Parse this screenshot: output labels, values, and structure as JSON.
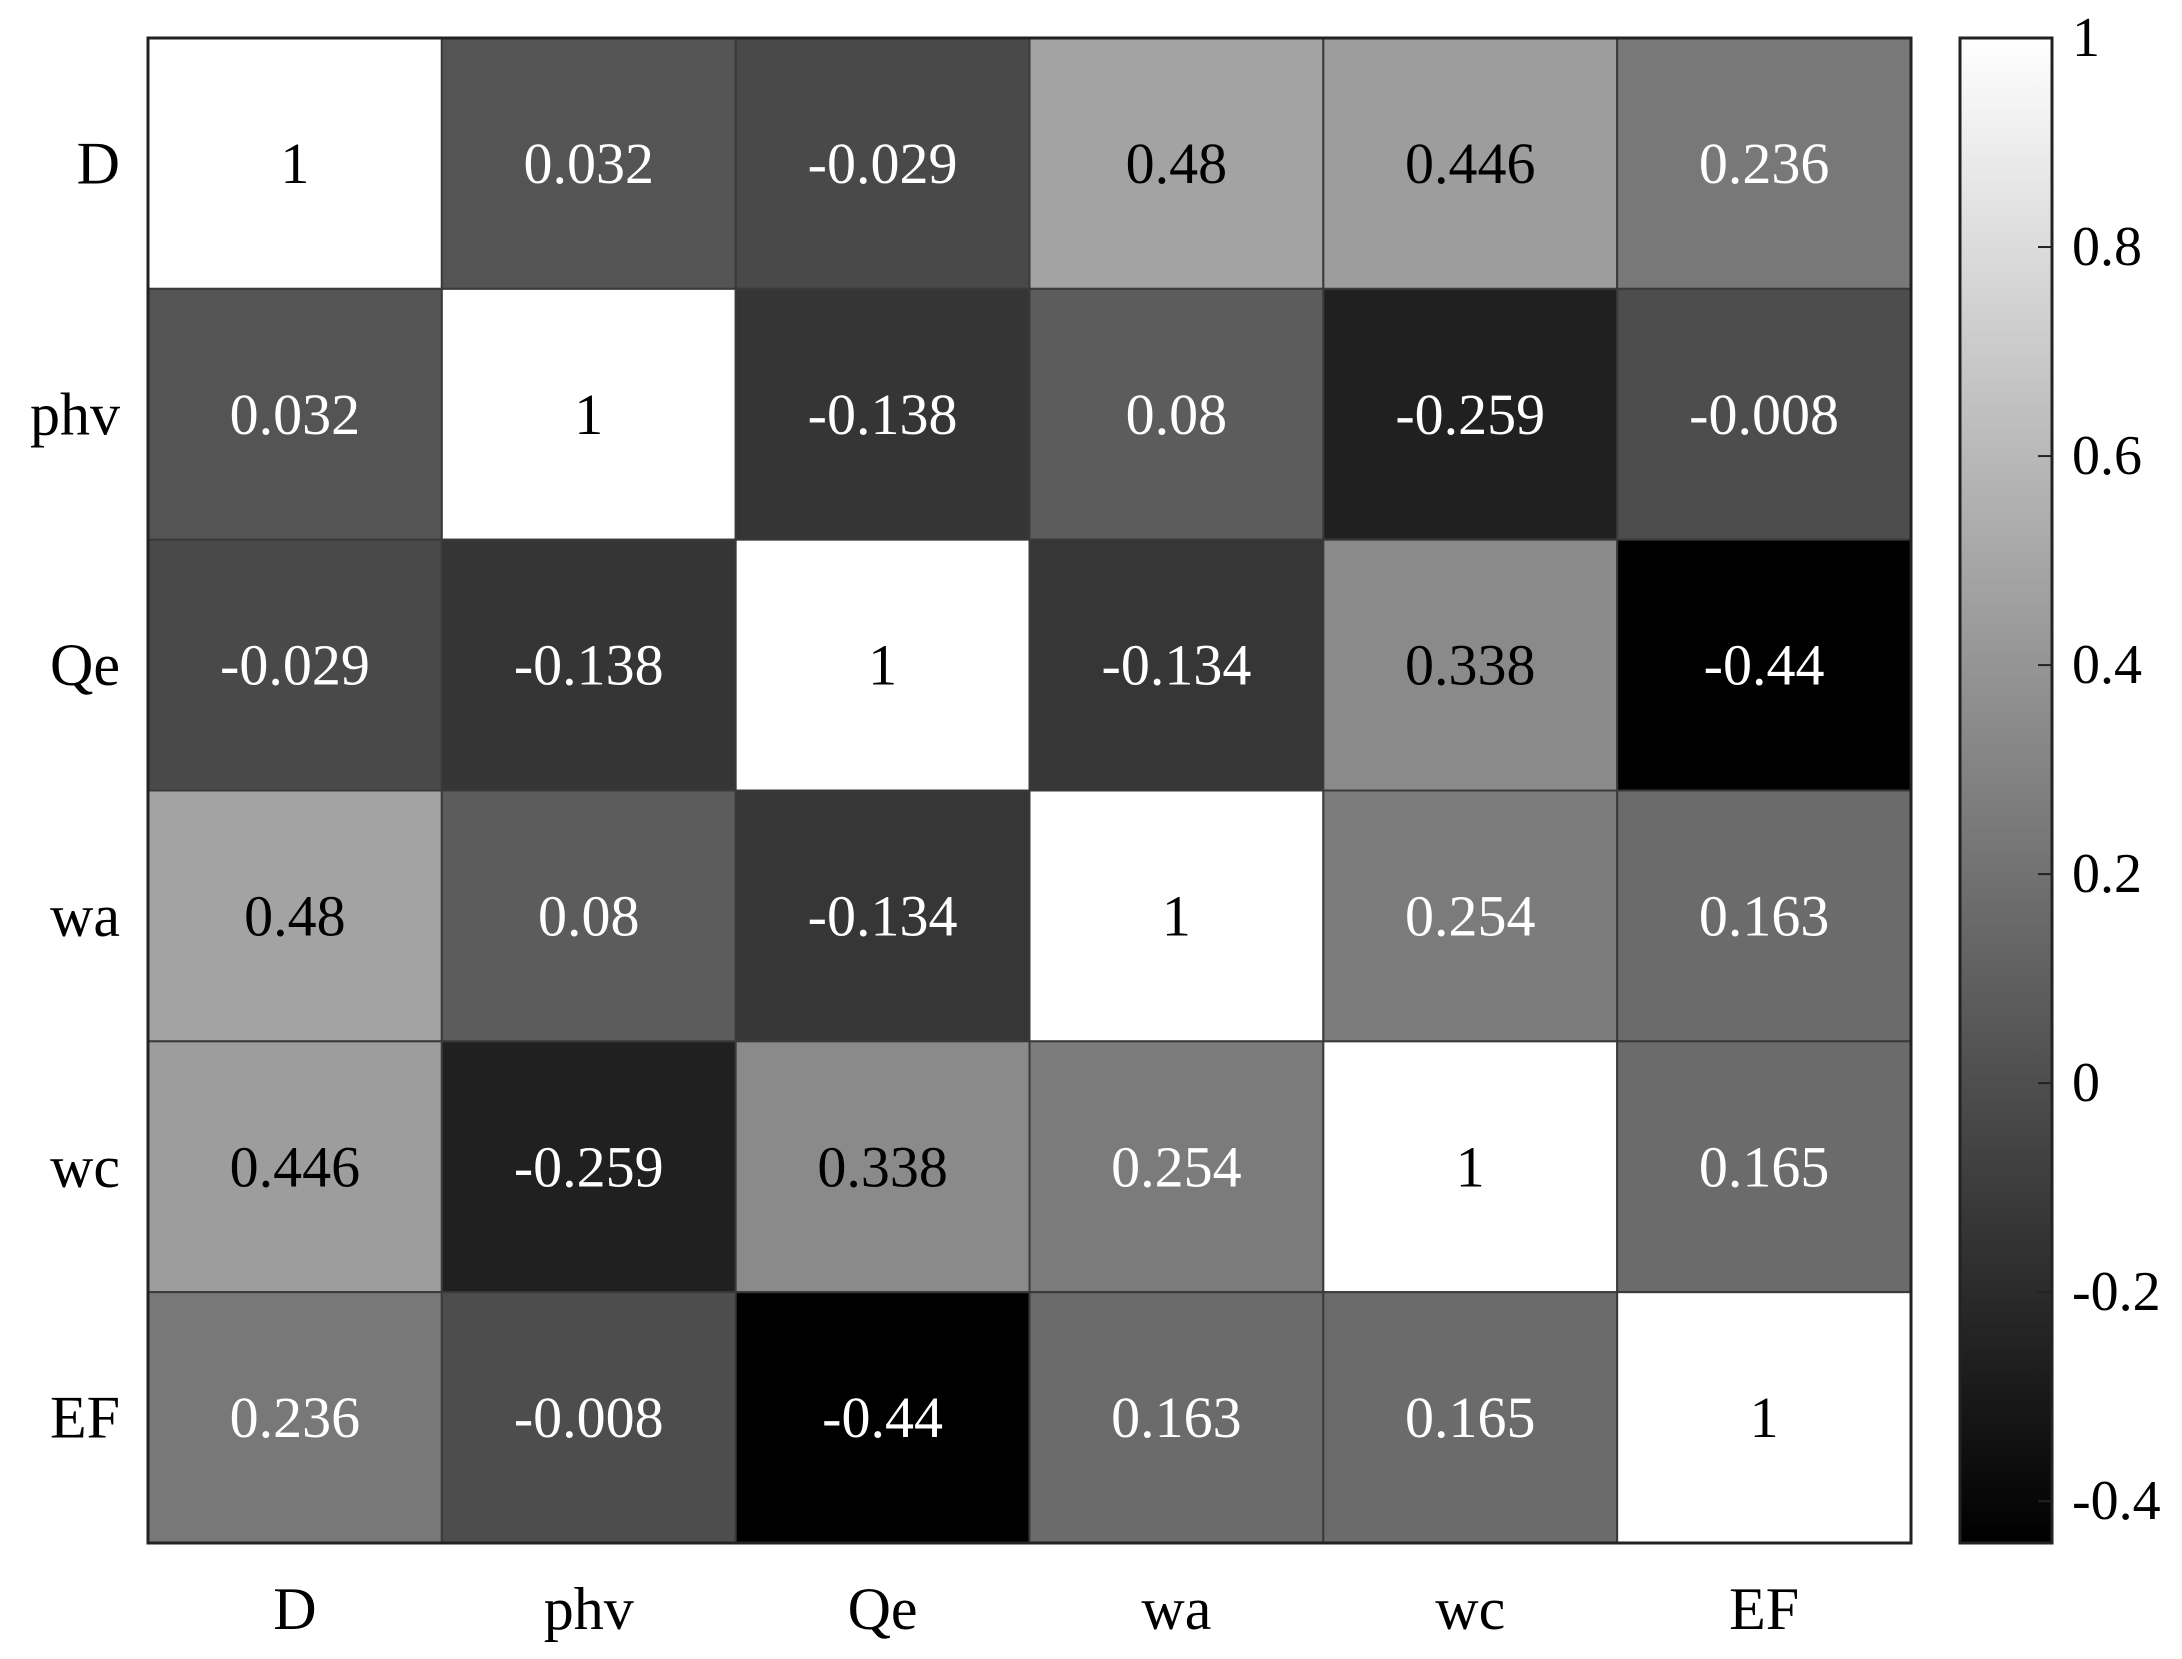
{
  "chart_data": {
    "type": "heatmap",
    "title": "",
    "xlabel": "",
    "ylabel": "",
    "row_labels": [
      "D",
      "phv",
      "Qe",
      "wa",
      "wc",
      "EF"
    ],
    "col_labels": [
      "D",
      "phv",
      "Qe",
      "wa",
      "wc",
      "EF"
    ],
    "matrix": [
      [
        1,
        0.032,
        -0.029,
        0.48,
        0.446,
        0.236
      ],
      [
        0.032,
        1,
        -0.138,
        0.08,
        -0.259,
        -0.008
      ],
      [
        -0.029,
        -0.138,
        1,
        -0.134,
        0.338,
        -0.44
      ],
      [
        0.48,
        0.08,
        -0.134,
        1,
        0.254,
        0.163
      ],
      [
        0.446,
        -0.259,
        0.338,
        0.254,
        1,
        0.165
      ],
      [
        0.236,
        -0.008,
        -0.44,
        0.163,
        0.165,
        1
      ]
    ],
    "cell_text": [
      [
        "1",
        "0.032",
        "-0.029",
        "0.48",
        "0.446",
        "0.236"
      ],
      [
        "0.032",
        "1",
        "-0.138",
        "0.08",
        "-0.259",
        "-0.008"
      ],
      [
        "-0.029",
        "-0.138",
        "1",
        "-0.134",
        "0.338",
        "-0.44"
      ],
      [
        "0.48",
        "0.08",
        "-0.134",
        "1",
        "0.254",
        "0.163"
      ],
      [
        "0.446",
        "-0.259",
        "0.338",
        "0.254",
        "1",
        "0.165"
      ],
      [
        "0.236",
        "-0.008",
        "-0.44",
        "0.163",
        "0.165",
        "1"
      ]
    ],
    "colormap": "gray",
    "color_range": [
      -0.44,
      1
    ],
    "colorbar": {
      "location": "right",
      "ticks": [
        -0.4,
        -0.2,
        0,
        0.2,
        0.4,
        0.6,
        0.8,
        1
      ],
      "tick_labels": [
        "-0.4",
        "-0.2",
        "0",
        "0.2",
        "0.4",
        "0.6",
        "0.8",
        "1"
      ]
    },
    "grid": true
  },
  "colors": {
    "low": "#000000",
    "high": "#ffffff",
    "grid_line": "#3a3a3a",
    "dark_text": "#000000",
    "light_text": "#ffffff"
  }
}
